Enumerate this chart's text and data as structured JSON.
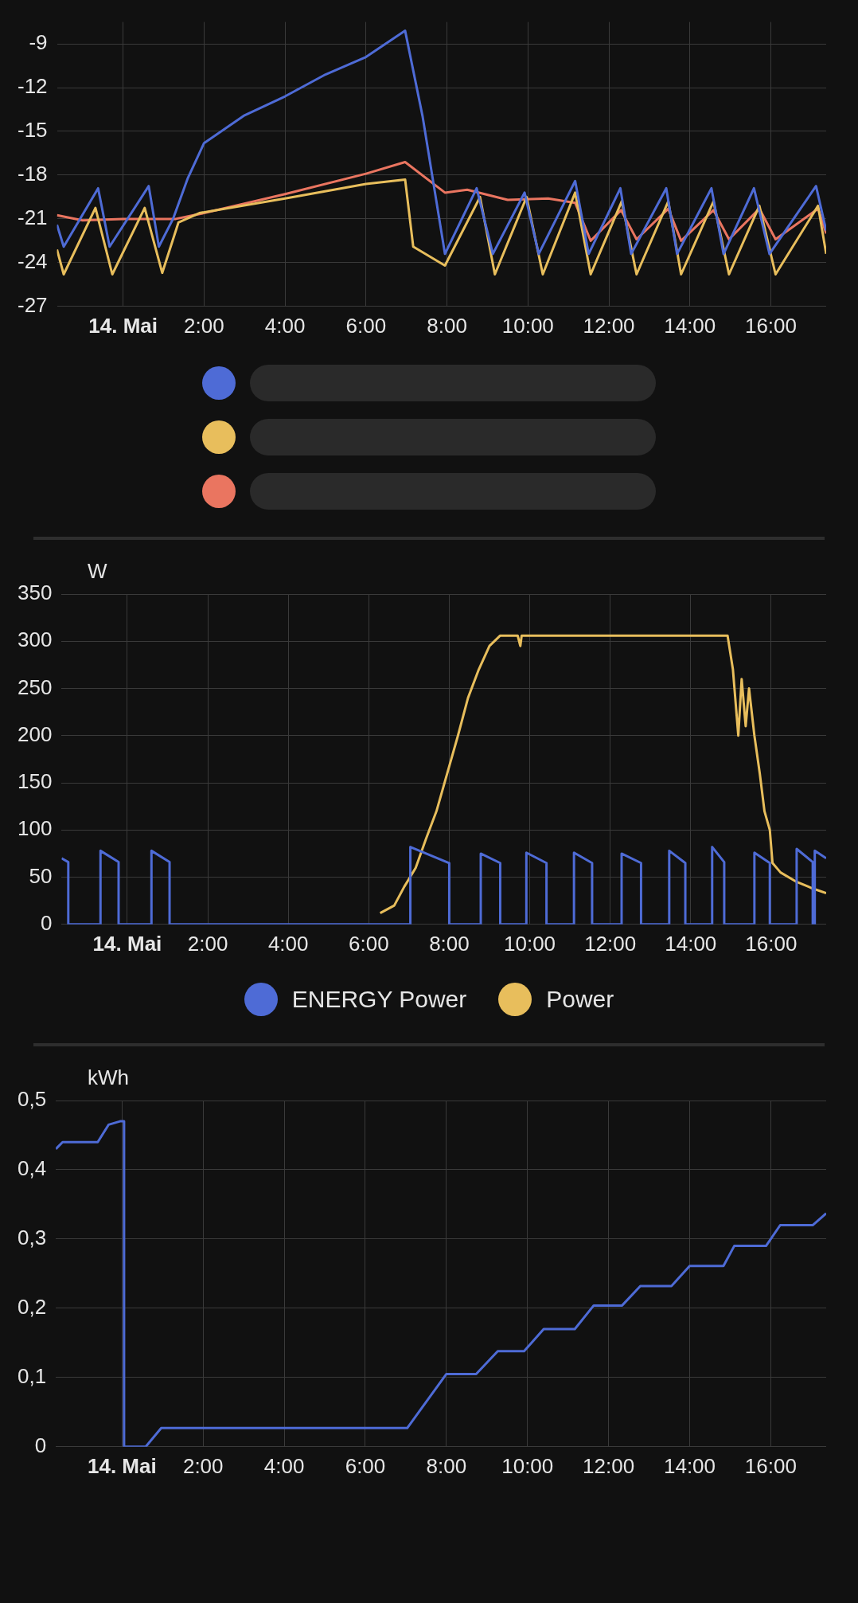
{
  "chart_data": [
    {
      "type": "line",
      "xlim": [
        "--05-13T22:22",
        "--05-14T17:22"
      ],
      "xticks": [
        {
          "value": "--05-14T00:00",
          "label": "14. Mai"
        },
        {
          "value": "--05-14T02:00",
          "label": "2:00"
        },
        {
          "value": "--05-14T04:00",
          "label": "4:00"
        },
        {
          "value": "--05-14T06:00",
          "label": "6:00"
        },
        {
          "value": "--05-14T08:00",
          "label": "8:00"
        },
        {
          "value": "--05-14T10:00",
          "label": "10:00"
        },
        {
          "value": "--05-14T12:00",
          "label": "12:00"
        },
        {
          "value": "--05-14T14:00",
          "label": "14:00"
        },
        {
          "value": "--05-14T16:00",
          "label": "16:00"
        }
      ],
      "ylim": [
        -27,
        -7.5
      ],
      "yticks": [
        -27,
        -24,
        -21,
        -18,
        -15,
        -12,
        -9
      ],
      "grid": true,
      "legend": "bottom",
      "marker": "none",
      "series": [
        {
          "color": "#4e6bd6",
          "x": [
            "--05-13T22:22",
            "--05-13T22:32",
            "--05-13T23:23",
            "--05-13T23:40",
            "--05-14T00:38",
            "--05-14T00:53",
            "--05-14T01:14",
            "--05-14T01:36",
            "--05-14T02:00",
            "--05-14T03:00",
            "--05-14T04:00",
            "--05-14T05:00",
            "--05-14T06:00",
            "--05-14T06:58",
            "--05-14T07:24",
            "--05-14T07:57",
            "--05-14T08:44",
            "--05-14T09:08",
            "--05-14T09:55",
            "--05-14T10:16",
            "--05-14T11:10",
            "--05-14T11:30",
            "--05-14T12:17",
            "--05-14T12:33",
            "--05-14T13:25",
            "--05-14T13:41",
            "--05-14T14:32",
            "--05-14T14:50",
            "--05-14T15:35",
            "--05-14T15:58",
            "--05-14T17:07",
            "--05-14T17:22"
          ],
          "values": [
            -21.4,
            -22.9,
            -18.9,
            -22.9,
            -18.75,
            -22.9,
            -21,
            -18.2,
            -15.8,
            -13.9,
            -12.6,
            -11.1,
            -9.9,
            -8.1,
            -14,
            -23.4,
            -18.9,
            -23.4,
            -19.2,
            -23.4,
            -18.4,
            -23.4,
            -18.9,
            -23.4,
            -18.9,
            -23.4,
            -18.9,
            -23.4,
            -18.9,
            -23.4,
            -18.75,
            -21.8
          ]
        },
        {
          "color": "#e8be5c",
          "x": [
            "--05-13T22:22",
            "--05-13T22:32",
            "--05-13T23:19",
            "--05-13T23:44",
            "--05-14T00:32",
            "--05-14T00:58",
            "--05-14T01:22",
            "--05-14T01:53",
            "--05-14T04:00",
            "--05-14T06:00",
            "--05-14T06:58",
            "--05-14T07:10",
            "--05-14T07:57",
            "--05-14T08:49",
            "--05-14T09:11",
            "--05-14T09:58",
            "--05-14T10:22",
            "--05-14T11:10",
            "--05-14T11:33",
            "--05-14T12:19",
            "--05-14T12:41",
            "--05-14T13:28",
            "--05-14T13:47",
            "--05-14T14:35",
            "--05-14T14:58",
            "--05-14T15:43",
            "--05-14T16:07",
            "--05-14T17:10",
            "--05-14T17:22"
          ],
          "values": [
            -23.1,
            -24.8,
            -20.25,
            -24.8,
            -20.25,
            -24.7,
            -21.25,
            -20.6,
            -19.6,
            -18.6,
            -18.3,
            -22.9,
            -24.2,
            -19.5,
            -24.8,
            -19.5,
            -24.8,
            -19.2,
            -24.8,
            -19.8,
            -24.8,
            -19.8,
            -24.8,
            -19.8,
            -24.8,
            -20.1,
            -24.8,
            -20.1,
            -23.4
          ]
        },
        {
          "color": "#ea7560",
          "x": [
            "--05-13T22:22",
            "--05-13T23:00",
            "--05-14T00:00",
            "--05-14T01:18",
            "--05-14T02:00",
            "--05-14T04:00",
            "--05-14T06:00",
            "--05-14T06:58",
            "--05-14T07:57",
            "--05-14T08:30",
            "--05-14T09:30",
            "--05-14T10:30",
            "--05-14T11:10",
            "--05-14T11:33",
            "--05-14T12:18",
            "--05-14T12:41",
            "--05-14T13:28",
            "--05-14T13:47",
            "--05-14T14:35",
            "--05-14T14:58",
            "--05-14T15:43",
            "--05-14T16:07",
            "--05-14T17:10",
            "--05-14T17:22"
          ],
          "values": [
            -20.75,
            -21.1,
            -21,
            -21,
            -20.6,
            -19.3,
            -17.9,
            -17.1,
            -19.2,
            -19,
            -19.7,
            -19.6,
            -19.9,
            -22.5,
            -20.4,
            -22.4,
            -20.3,
            -22.5,
            -20.4,
            -22.4,
            -20.3,
            -22.4,
            -20.3,
            -22
          ]
        }
      ]
    },
    {
      "type": "line",
      "ylabel": "W",
      "xlim": [
        "--05-13T22:22",
        "--05-14T17:22"
      ],
      "xticks": [
        {
          "value": "--05-14T00:00",
          "label": "14. Mai"
        },
        {
          "value": "--05-14T02:00",
          "label": "2:00"
        },
        {
          "value": "--05-14T04:00",
          "label": "4:00"
        },
        {
          "value": "--05-14T06:00",
          "label": "6:00"
        },
        {
          "value": "--05-14T08:00",
          "label": "8:00"
        },
        {
          "value": "--05-14T10:00",
          "label": "10:00"
        },
        {
          "value": "--05-14T12:00",
          "label": "12:00"
        },
        {
          "value": "--05-14T14:00",
          "label": "14:00"
        },
        {
          "value": "--05-14T16:00",
          "label": "16:00"
        }
      ],
      "ylim": [
        0,
        350
      ],
      "yticks": [
        0,
        50,
        100,
        150,
        200,
        250,
        300,
        350
      ],
      "grid": true,
      "legend": "bottom",
      "marker": "none",
      "series": [
        {
          "name": "ENERGY Power",
          "color": "#4e6bd6",
          "x": [
            "--05-13T22:22",
            "--05-13T22:32",
            "--05-13T22:32",
            "--05-13T23:20",
            "--05-13T23:20",
            "--05-13T23:47",
            "--05-13T23:47",
            "--05-14T00:36",
            "--05-14T00:36",
            "--05-14T01:03",
            "--05-14T01:03",
            "--05-14T07:02",
            "--05-14T07:02",
            "--05-14T08:00",
            "--05-14T08:00",
            "--05-14T08:47",
            "--05-14T08:47",
            "--05-14T09:16",
            "--05-14T09:16",
            "--05-14T09:55",
            "--05-14T09:55",
            "--05-14T10:25",
            "--05-14T10:25",
            "--05-14T11:06",
            "--05-14T11:06",
            "--05-14T11:33",
            "--05-14T11:33",
            "--05-14T12:17",
            "--05-14T12:17",
            "--05-14T12:46",
            "--05-14T12:46",
            "--05-14T13:28",
            "--05-14T13:28",
            "--05-14T13:52",
            "--05-14T13:52",
            "--05-14T14:32",
            "--05-14T14:32",
            "--05-14T14:50",
            "--05-14T14:50",
            "--05-14T15:35",
            "--05-14T15:35",
            "--05-14T15:58",
            "--05-14T15:58",
            "--05-14T16:38",
            "--05-14T16:38",
            "--05-14T17:02",
            "--05-14T17:02",
            "--05-14T17:05",
            "--05-14T17:05",
            "--05-14T17:22"
          ],
          "values": [
            70,
            66,
            0,
            0,
            78,
            66,
            0,
            0,
            78,
            66,
            0,
            0,
            82,
            65,
            0,
            0,
            75,
            65,
            0,
            0,
            76,
            65,
            0,
            0,
            76,
            65,
            0,
            0,
            75,
            65,
            0,
            0,
            78,
            65,
            0,
            0,
            82,
            66,
            0,
            0,
            76,
            65,
            0,
            0,
            80,
            66,
            0,
            0,
            78,
            70
          ]
        },
        {
          "name": "Power",
          "color": "#e8be5c",
          "x": [
            "--05-14T06:17",
            "--05-14T06:38",
            "--05-14T06:53",
            "--05-14T07:10",
            "--05-14T07:25",
            "--05-14T07:41",
            "--05-14T07:57",
            "--05-14T08:13",
            "--05-14T08:28",
            "--05-14T08:44",
            "--05-14T09:00",
            "--05-14T09:16",
            "--05-14T09:42",
            "--05-14T09:46",
            "--05-14T09:48",
            "--05-14T14:55",
            "--05-14T15:03",
            "--05-14T15:11",
            "--05-14T15:16",
            "--05-14T15:22",
            "--05-14T15:27",
            "--05-14T15:35",
            "--05-14T15:43",
            "--05-14T15:50",
            "--05-14T15:58",
            "--05-14T16:02",
            "--05-14T16:14",
            "--05-14T16:38",
            "--05-14T17:02",
            "--05-14T17:22"
          ],
          "values": [
            12,
            20,
            40,
            60,
            90,
            120,
            160,
            200,
            240,
            270,
            295,
            306,
            306,
            295,
            306,
            306,
            270,
            200,
            260,
            210,
            250,
            200,
            160,
            120,
            100,
            65,
            55,
            45,
            38,
            33
          ]
        }
      ]
    },
    {
      "type": "line",
      "ylabel": "kWh",
      "xlim": [
        "--05-13T22:22",
        "--05-14T17:22"
      ],
      "xticks": [
        {
          "value": "--05-14T00:00",
          "label": "14. Mai"
        },
        {
          "value": "--05-14T02:00",
          "label": "2:00"
        },
        {
          "value": "--05-14T04:00",
          "label": "4:00"
        },
        {
          "value": "--05-14T06:00",
          "label": "6:00"
        },
        {
          "value": "--05-14T08:00",
          "label": "8:00"
        },
        {
          "value": "--05-14T10:00",
          "label": "10:00"
        },
        {
          "value": "--05-14T12:00",
          "label": "12:00"
        },
        {
          "value": "--05-14T14:00",
          "label": "14:00"
        },
        {
          "value": "--05-14T16:00",
          "label": "16:00"
        }
      ],
      "ylim": [
        0,
        0.5
      ],
      "yticks": [
        {
          "value": 0,
          "label": "0"
        },
        {
          "value": 0.1,
          "label": "0,1"
        },
        {
          "value": 0.2,
          "label": "0,2"
        },
        {
          "value": 0.3,
          "label": "0,3"
        },
        {
          "value": 0.4,
          "label": "0,4"
        },
        {
          "value": 0.5,
          "label": "0,5"
        }
      ],
      "grid": true,
      "marker": "none",
      "series": [
        {
          "color": "#4e6bd6",
          "x": [
            "--05-13T22:22",
            "--05-13T22:32",
            "--05-13T23:24",
            "--05-13T23:40",
            "--05-13T23:57",
            "--05-14T00:03",
            "--05-14T00:03",
            "--05-14T00:35",
            "--05-14T00:58",
            "--05-14T07:02",
            "--05-14T08:00",
            "--05-14T08:44",
            "--05-14T09:16",
            "--05-14T09:55",
            "--05-14T10:24",
            "--05-14T11:10",
            "--05-14T11:38",
            "--05-14T12:20",
            "--05-14T12:47",
            "--05-14T13:33",
            "--05-14T14:00",
            "--05-14T14:50",
            "--05-14T15:06",
            "--05-14T15:53",
            "--05-14T16:14",
            "--05-14T17:02",
            "--05-14T17:22"
          ],
          "values": [
            0.43,
            0.44,
            0.44,
            0.465,
            0.47,
            0.47,
            0,
            0,
            0.027,
            0.027,
            0.105,
            0.105,
            0.138,
            0.138,
            0.17,
            0.17,
            0.204,
            0.204,
            0.232,
            0.232,
            0.261,
            0.261,
            0.29,
            0.29,
            0.32,
            0.32,
            0.337
          ]
        }
      ]
    }
  ]
}
